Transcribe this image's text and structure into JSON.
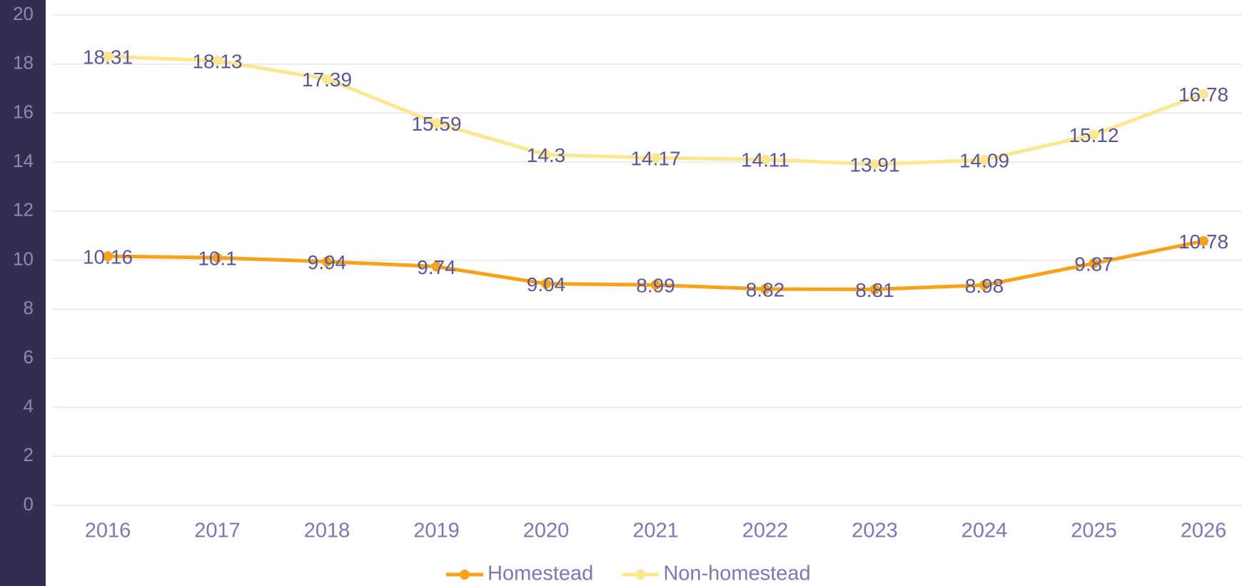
{
  "chart_data": {
    "type": "line",
    "categories": [
      "2016",
      "2017",
      "2018",
      "2019",
      "2020",
      "2021",
      "2022",
      "2023",
      "2024",
      "2025",
      "2026"
    ],
    "series": [
      {
        "name": "Homestead",
        "color": "#f7a21b",
        "values": [
          10.16,
          10.1,
          9.94,
          9.74,
          9.04,
          8.99,
          8.82,
          8.81,
          8.98,
          9.87,
          10.78
        ]
      },
      {
        "name": "Non-homestead",
        "color": "#fbe691",
        "values": [
          18.31,
          18.13,
          17.39,
          15.59,
          14.3,
          14.17,
          14.11,
          13.91,
          14.09,
          15.12,
          16.78
        ]
      }
    ],
    "ylim": [
      0,
      20
    ],
    "yticks": [
      0,
      2,
      4,
      6,
      8,
      10,
      12,
      14,
      16,
      18,
      20
    ],
    "grid": true,
    "legend": "bottom"
  }
}
